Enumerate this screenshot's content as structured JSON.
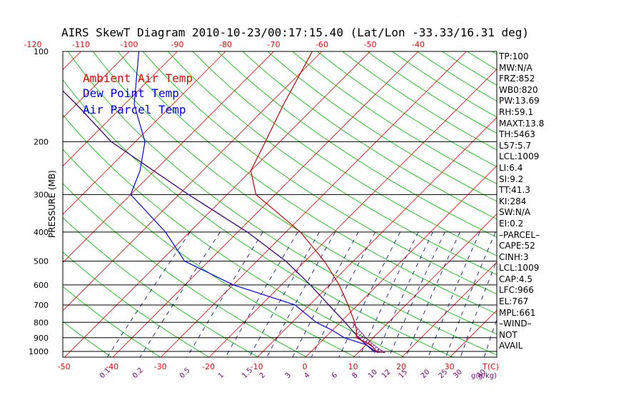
{
  "title": "AIRS SkewT Diagram 2010-10-23/00:17:15.40 (Lat/Lon -33.33/16.31 deg)",
  "y_axis_label": "PRESSURE (MB)",
  "bottom_unit_label": "T(C)",
  "mixing_ratio_unit_label": "g(g/kg)",
  "legend": [
    {
      "label": "Ambient Air Temp",
      "color": "#ff0000"
    },
    {
      "label": "Dew Point Temp",
      "color": "#0000ff"
    },
    {
      "label": "Air Parcel Temp",
      "color": "#0000ff"
    }
  ],
  "indices": [
    "TP:100",
    "MW:N/A",
    "FRZ:852",
    "WB0:820",
    "PW:13.69",
    "RH:59.1",
    "MAXT:13.8",
    "TH:5463",
    "L57:5.7",
    "LCL:1009",
    "LI:6.4",
    "SI:9.2",
    "TT:41.3",
    "KI:284",
    "SW:N/A",
    "EI:0.2",
    "–PARCEL–",
    "CAPE:52",
    "CINH:3",
    "LCL:1009",
    "CAP:4.5",
    "LFC:966",
    "EL:767",
    "MPL:661",
    "–WIND–",
    "NOT",
    "AVAIL"
  ],
  "colors": {
    "isotherm": "#ff0000",
    "dry_adiabat": "#00cc00",
    "mixing_ratio": "#000080",
    "temperature": "#cc0000",
    "dewpoint": "#0000ff",
    "parcel": "#400080",
    "axis_text": "#ff0000",
    "mixing_text": "#800080"
  },
  "chart_data": {
    "type": "skew-t",
    "pressure_levels": [
      100,
      200,
      300,
      400,
      500,
      600,
      700,
      800,
      900,
      1000
    ],
    "top_temp_ticks": [
      -120,
      -110,
      -100,
      -90,
      -80,
      -70,
      -60,
      -50,
      -40
    ],
    "bottom_temp_ticks": [
      -50,
      -40,
      -30,
      -20,
      -10,
      0,
      10,
      20,
      30
    ],
    "mixing_ratio_ticks": [
      "0.1",
      "0.2",
      "0.5",
      "1",
      "1.5",
      "2",
      "3",
      "4",
      "6",
      "8",
      "10",
      "12",
      "15",
      "20",
      "25",
      "30",
      "40"
    ],
    "temperature_profile": [
      {
        "p": 1009,
        "t": 14.0
      },
      {
        "p": 950,
        "t": 11.0
      },
      {
        "p": 900,
        "t": 6.5
      },
      {
        "p": 850,
        "t": 5.0
      },
      {
        "p": 800,
        "t": 3.0
      },
      {
        "p": 700,
        "t": -2.0
      },
      {
        "p": 600,
        "t": -8.0
      },
      {
        "p": 500,
        "t": -16.0
      },
      {
        "p": 400,
        "t": -27.0
      },
      {
        "p": 300,
        "t": -44.0
      },
      {
        "p": 250,
        "t": -50.0
      },
      {
        "p": 200,
        "t": -53.0
      },
      {
        "p": 150,
        "t": -57.0
      },
      {
        "p": 100,
        "t": -62.0
      }
    ],
    "dewpoint_profile": [
      {
        "p": 1009,
        "t": 13.5
      },
      {
        "p": 950,
        "t": 10.0
      },
      {
        "p": 900,
        "t": 4.0
      },
      {
        "p": 850,
        "t": 0.0
      },
      {
        "p": 800,
        "t": -5.0
      },
      {
        "p": 700,
        "t": -13.0
      },
      {
        "p": 600,
        "t": -30.0
      },
      {
        "p": 500,
        "t": -45.0
      },
      {
        "p": 400,
        "t": -55.0
      },
      {
        "p": 300,
        "t": -70.0
      },
      {
        "p": 250,
        "t": -73.0
      },
      {
        "p": 200,
        "t": -78.0
      },
      {
        "p": 150,
        "t": -88.0
      },
      {
        "p": 100,
        "t": -98.0
      }
    ],
    "parcel_profile": [
      {
        "p": 1009,
        "t": 14.0
      },
      {
        "p": 950,
        "t": 10.0
      },
      {
        "p": 900,
        "t": 7.0
      },
      {
        "p": 800,
        "t": 1.0
      },
      {
        "p": 700,
        "t": -6.0
      },
      {
        "p": 600,
        "t": -14.0
      },
      {
        "p": 500,
        "t": -24.0
      },
      {
        "p": 400,
        "t": -38.0
      },
      {
        "p": 300,
        "t": -58.0
      },
      {
        "p": 200,
        "t": -85.0
      },
      {
        "p": 150,
        "t": -100.0
      },
      {
        "p": 100,
        "t": -122.0
      }
    ],
    "xlabel": "T(C)",
    "ylabel": "PRESSURE (MB)"
  }
}
